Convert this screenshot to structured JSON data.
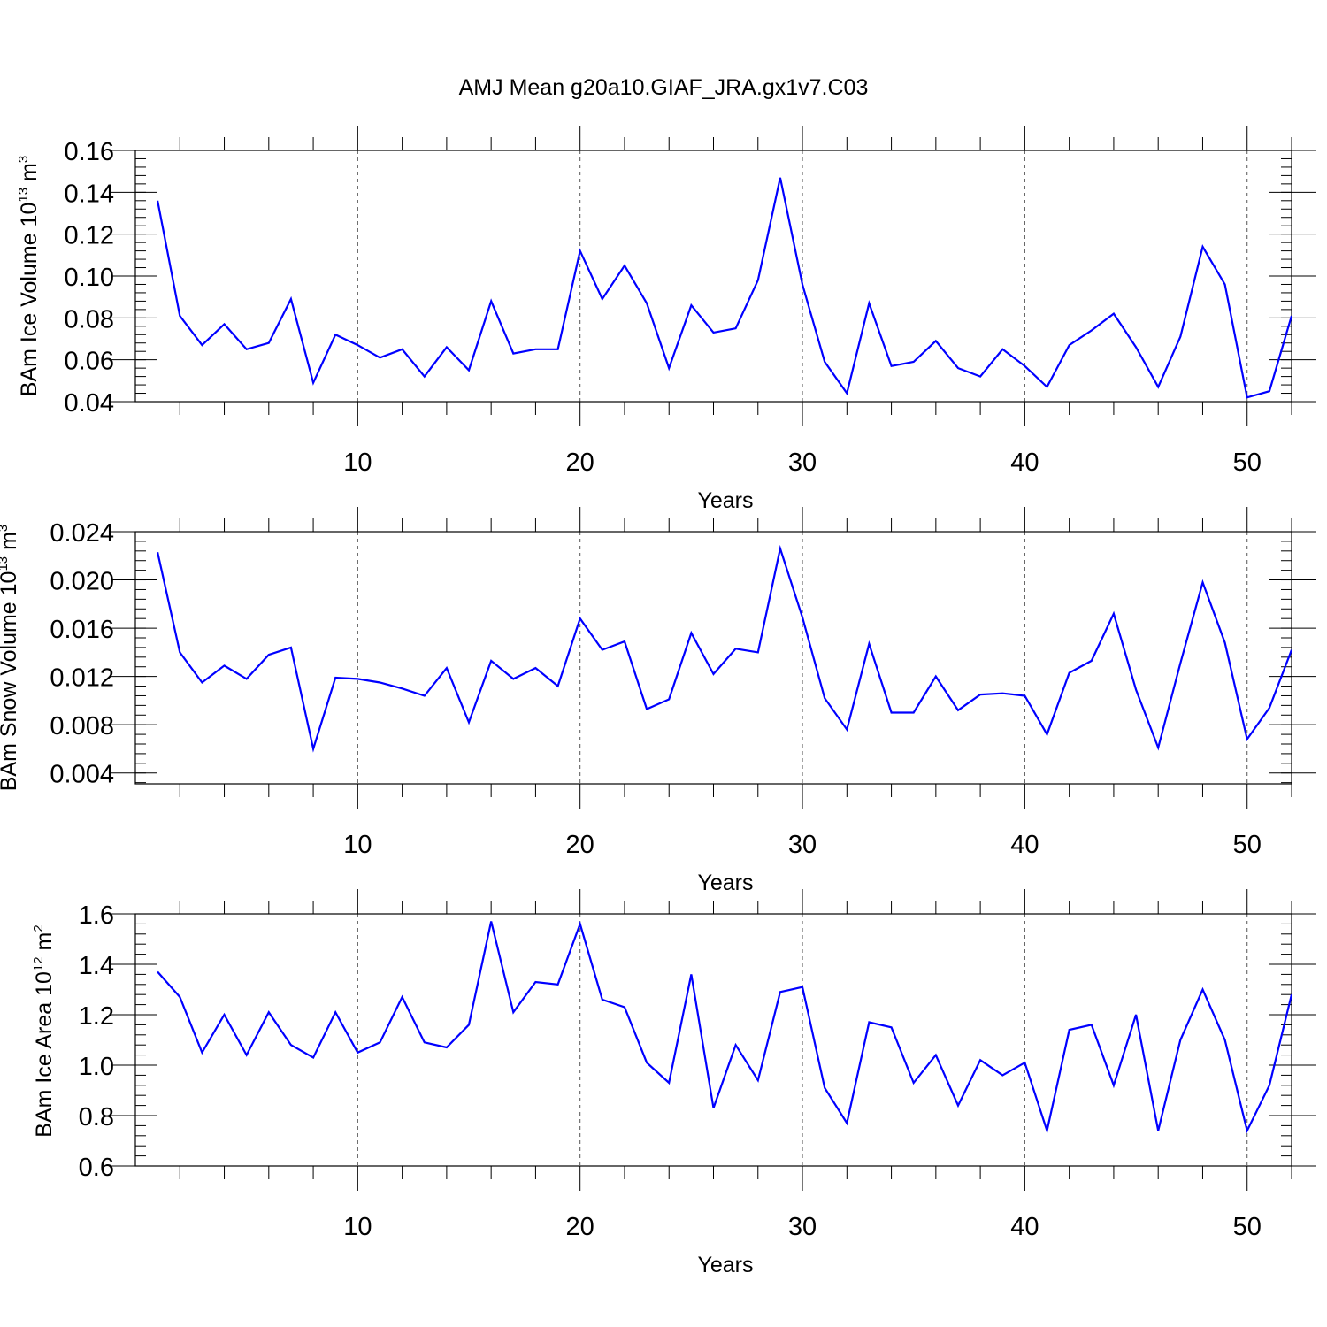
{
  "title": "AMJ Mean g20a10.GIAF_JRA.gx1v7.C03",
  "chart_data": [
    {
      "type": "line",
      "xlabel": "Years",
      "ylabel_main": "BAm Ice Volume 10",
      "ylabel_exp": "13",
      "ylabel_unit": " m",
      "ylabel_unit_exp": "3",
      "xlim": [
        0,
        52
      ],
      "ylim": [
        0.04,
        0.16
      ],
      "xticks": [
        10,
        20,
        30,
        40,
        50
      ],
      "xtick_labels": [
        "10",
        "20",
        "30",
        "40",
        "50"
      ],
      "yticks": [
        0.04,
        0.06,
        0.08,
        0.1,
        0.12,
        0.14,
        0.16
      ],
      "ytick_labels": [
        "0.04",
        "0.06",
        "0.08",
        "0.10",
        "0.12",
        "0.14",
        "0.16"
      ],
      "grid": "vertical dashed at major x ticks",
      "line_color": "#0000ff",
      "x": [
        1,
        2,
        3,
        4,
        5,
        6,
        7,
        8,
        9,
        10,
        11,
        12,
        13,
        14,
        15,
        16,
        17,
        18,
        19,
        20,
        21,
        22,
        23,
        24,
        25,
        26,
        27,
        28,
        29,
        30,
        31,
        32,
        33,
        34,
        35,
        36,
        37,
        38,
        39,
        40,
        41,
        42,
        43,
        44,
        45,
        46,
        47,
        48,
        49,
        50,
        51,
        52
      ],
      "values": [
        0.136,
        0.081,
        0.067,
        0.077,
        0.065,
        0.068,
        0.089,
        0.049,
        0.072,
        0.067,
        0.061,
        0.065,
        0.052,
        0.066,
        0.055,
        0.088,
        0.063,
        0.065,
        0.065,
        0.112,
        0.089,
        0.105,
        0.087,
        0.056,
        0.086,
        0.073,
        0.075,
        0.098,
        0.147,
        0.096,
        0.059,
        0.044,
        0.087,
        0.057,
        0.059,
        0.069,
        0.056,
        0.052,
        0.065,
        0.057,
        0.047,
        0.067,
        0.074,
        0.082,
        0.066,
        0.047,
        0.071,
        0.114,
        0.096,
        0.042,
        0.045,
        0.081
      ]
    },
    {
      "type": "line",
      "xlabel": "Years",
      "ylabel_main": "BAm Snow Volume 10",
      "ylabel_exp": "13",
      "ylabel_unit": " m",
      "ylabel_unit_exp": "3",
      "xlim": [
        0,
        52
      ],
      "ylim": [
        0.003,
        0.024
      ],
      "xticks": [
        10,
        20,
        30,
        40,
        50
      ],
      "xtick_labels": [
        "10",
        "20",
        "30",
        "40",
        "50"
      ],
      "yticks": [
        0.004,
        0.008,
        0.012,
        0.016,
        0.02,
        0.024
      ],
      "ytick_labels": [
        "0.004",
        "0.008",
        "0.012",
        "0.016",
        "0.020",
        "0.024"
      ],
      "grid": "vertical dashed at major x ticks",
      "line_color": "#0000ff",
      "x": [
        1,
        2,
        3,
        4,
        5,
        6,
        7,
        8,
        9,
        10,
        11,
        12,
        13,
        14,
        15,
        16,
        17,
        18,
        19,
        20,
        21,
        22,
        23,
        24,
        25,
        26,
        27,
        28,
        29,
        30,
        31,
        32,
        33,
        34,
        35,
        36,
        37,
        38,
        39,
        40,
        41,
        42,
        43,
        44,
        45,
        46,
        47,
        48,
        49,
        50,
        51,
        52
      ],
      "values": [
        0.0223,
        0.014,
        0.0115,
        0.0129,
        0.0118,
        0.0138,
        0.0144,
        0.006,
        0.0119,
        0.0118,
        0.0115,
        0.011,
        0.0104,
        0.0127,
        0.0082,
        0.0133,
        0.0118,
        0.0127,
        0.0112,
        0.0168,
        0.0142,
        0.0149,
        0.0093,
        0.0101,
        0.0156,
        0.0122,
        0.0143,
        0.014,
        0.0226,
        0.0169,
        0.0102,
        0.0076,
        0.0147,
        0.009,
        0.009,
        0.012,
        0.0092,
        0.0105,
        0.0106,
        0.0104,
        0.0072,
        0.0123,
        0.0133,
        0.0172,
        0.0109,
        0.0061,
        0.0131,
        0.0198,
        0.0148,
        0.0068,
        0.0094,
        0.0142
      ]
    },
    {
      "type": "line",
      "xlabel": "Years",
      "ylabel_main": "BAm Ice Area 10",
      "ylabel_exp": "12",
      "ylabel_unit": " m",
      "ylabel_unit_exp": "2",
      "xlim": [
        0,
        52
      ],
      "ylim": [
        0.6,
        1.6
      ],
      "xticks": [
        10,
        20,
        30,
        40,
        50
      ],
      "xtick_labels": [
        "10",
        "20",
        "30",
        "40",
        "50"
      ],
      "yticks": [
        0.6,
        0.8,
        1.0,
        1.2,
        1.4,
        1.6
      ],
      "ytick_labels": [
        "0.6",
        "0.8",
        "1.0",
        "1.2",
        "1.4",
        "1.6"
      ],
      "grid": "vertical dashed at major x ticks",
      "line_color": "#0000ff",
      "x": [
        1,
        2,
        3,
        4,
        5,
        6,
        7,
        8,
        9,
        10,
        11,
        12,
        13,
        14,
        15,
        16,
        17,
        18,
        19,
        20,
        21,
        22,
        23,
        24,
        25,
        26,
        27,
        28,
        29,
        30,
        31,
        32,
        33,
        34,
        35,
        36,
        37,
        38,
        39,
        40,
        41,
        42,
        43,
        44,
        45,
        46,
        47,
        48,
        49,
        50,
        51,
        52
      ],
      "values": [
        1.37,
        1.27,
        1.05,
        1.2,
        1.04,
        1.21,
        1.08,
        1.03,
        1.21,
        1.05,
        1.09,
        1.27,
        1.09,
        1.07,
        1.16,
        1.57,
        1.21,
        1.33,
        1.32,
        1.56,
        1.26,
        1.23,
        1.01,
        0.93,
        1.36,
        0.83,
        1.08,
        0.94,
        1.29,
        1.31,
        0.91,
        0.77,
        1.17,
        1.15,
        0.93,
        1.04,
        0.84,
        1.02,
        0.96,
        1.01,
        0.74,
        1.14,
        1.16,
        0.92,
        1.2,
        0.74,
        1.1,
        1.3,
        1.1,
        0.74,
        0.92,
        1.28
      ]
    }
  ]
}
